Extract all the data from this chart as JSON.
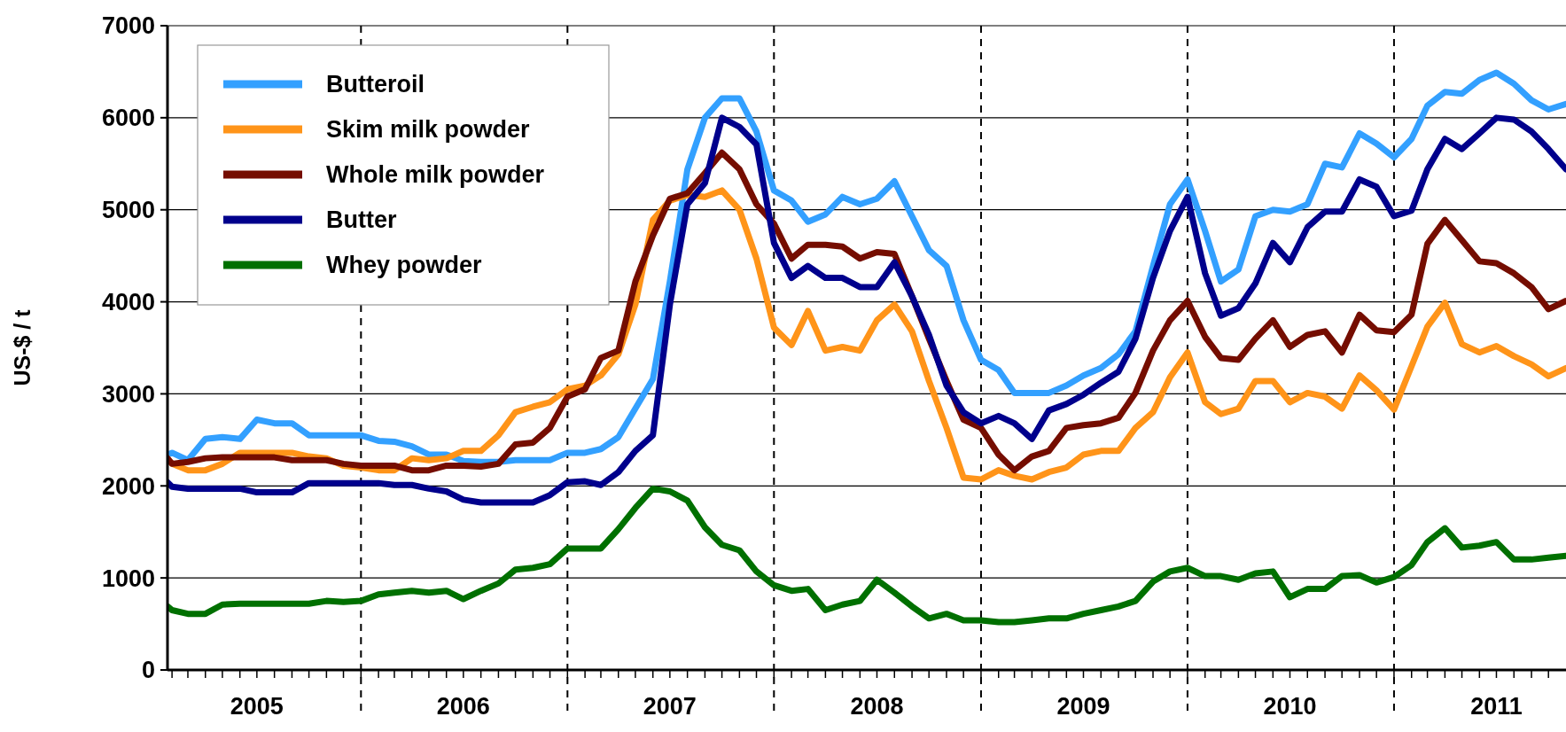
{
  "chart_data": {
    "type": "line",
    "ylabel": "US-$ / t",
    "ylim": [
      0,
      7000
    ],
    "yticks": [
      0,
      1000,
      2000,
      3000,
      4000,
      5000,
      6000,
      7000
    ],
    "grid": "y",
    "legend": "top left",
    "marker": "none",
    "line_style": "solid",
    "xlim": [
      "2005-01-24",
      "2011-11-01"
    ],
    "xticks": [
      {
        "value": "2005-02-01",
        "label": null
      },
      {
        "value": "2005-03-01",
        "label": null
      },
      {
        "value": "2005-04-01",
        "label": null
      },
      {
        "value": "2005-05-01",
        "label": null
      },
      {
        "value": "2005-06-01",
        "label": null
      },
      {
        "value": "2005-07-01",
        "label": "2005"
      },
      {
        "value": "2005-08-01",
        "label": null
      },
      {
        "value": "2005-09-01",
        "label": null
      },
      {
        "value": "2005-10-01",
        "label": null
      },
      {
        "value": "2005-11-01",
        "label": null
      },
      {
        "value": "2005-12-01",
        "label": null
      },
      {
        "value": "2006-01-01",
        "label": null
      },
      {
        "value": "2006-02-01",
        "label": null
      },
      {
        "value": "2006-03-01",
        "label": null
      },
      {
        "value": "2006-04-01",
        "label": null
      },
      {
        "value": "2006-05-01",
        "label": null
      },
      {
        "value": "2006-06-01",
        "label": null
      },
      {
        "value": "2006-07-01",
        "label": "2006"
      },
      {
        "value": "2006-08-01",
        "label": null
      },
      {
        "value": "2006-09-01",
        "label": null
      },
      {
        "value": "2006-10-01",
        "label": null
      },
      {
        "value": "2006-11-01",
        "label": null
      },
      {
        "value": "2006-12-01",
        "label": null
      },
      {
        "value": "2007-01-01",
        "label": null
      },
      {
        "value": "2007-02-01",
        "label": null
      },
      {
        "value": "2007-03-01",
        "label": null
      },
      {
        "value": "2007-04-01",
        "label": null
      },
      {
        "value": "2007-05-01",
        "label": null
      },
      {
        "value": "2007-06-01",
        "label": null
      },
      {
        "value": "2007-07-01",
        "label": "2007"
      },
      {
        "value": "2007-08-01",
        "label": null
      },
      {
        "value": "2007-09-01",
        "label": null
      },
      {
        "value": "2007-10-01",
        "label": null
      },
      {
        "value": "2007-11-01",
        "label": null
      },
      {
        "value": "2007-12-01",
        "label": null
      },
      {
        "value": "2008-01-01",
        "label": null
      },
      {
        "value": "2008-02-01",
        "label": null
      },
      {
        "value": "2008-03-01",
        "label": null
      },
      {
        "value": "2008-04-01",
        "label": null
      },
      {
        "value": "2008-05-01",
        "label": null
      },
      {
        "value": "2008-06-01",
        "label": null
      },
      {
        "value": "2008-07-01",
        "label": "2008"
      },
      {
        "value": "2008-08-01",
        "label": null
      },
      {
        "value": "2008-09-01",
        "label": null
      },
      {
        "value": "2008-10-01",
        "label": null
      },
      {
        "value": "2008-11-01",
        "label": null
      },
      {
        "value": "2008-12-01",
        "label": null
      },
      {
        "value": "2009-01-01",
        "label": null
      },
      {
        "value": "2009-02-01",
        "label": null
      },
      {
        "value": "2009-03-01",
        "label": null
      },
      {
        "value": "2009-04-01",
        "label": null
      },
      {
        "value": "2009-05-01",
        "label": null
      },
      {
        "value": "2009-06-01",
        "label": null
      },
      {
        "value": "2009-07-01",
        "label": "2009"
      },
      {
        "value": "2009-08-01",
        "label": null
      },
      {
        "value": "2009-09-01",
        "label": null
      },
      {
        "value": "2009-10-01",
        "label": null
      },
      {
        "value": "2009-11-01",
        "label": null
      },
      {
        "value": "2009-12-01",
        "label": null
      },
      {
        "value": "2010-01-01",
        "label": null
      },
      {
        "value": "2010-02-01",
        "label": null
      },
      {
        "value": "2010-03-01",
        "label": null
      },
      {
        "value": "2010-04-01",
        "label": null
      },
      {
        "value": "2010-05-01",
        "label": null
      },
      {
        "value": "2010-06-01",
        "label": null
      },
      {
        "value": "2010-07-01",
        "label": "2010"
      },
      {
        "value": "2010-08-01",
        "label": null
      },
      {
        "value": "2010-09-01",
        "label": null
      },
      {
        "value": "2010-10-01",
        "label": null
      },
      {
        "value": "2010-11-01",
        "label": null
      },
      {
        "value": "2010-12-01",
        "label": null
      },
      {
        "value": "2011-01-01",
        "label": null
      },
      {
        "value": "2011-02-01",
        "label": null
      },
      {
        "value": "2011-03-01",
        "label": null
      },
      {
        "value": "2011-04-01",
        "label": null
      },
      {
        "value": "2011-05-01",
        "label": null
      },
      {
        "value": "2011-06-01",
        "label": null
      },
      {
        "value": "2011-07-01",
        "label": "2011"
      },
      {
        "value": "2011-08-01",
        "label": null
      },
      {
        "value": "2011-09-01",
        "label": null
      },
      {
        "value": "2011-10-01",
        "label": null
      }
    ],
    "ref_lines": [
      {
        "axis": "x",
        "value": "2006-01-01",
        "line_style": "dashed",
        "color": "#000000"
      },
      {
        "axis": "x",
        "value": "2007-01-01",
        "line_style": "dashed",
        "color": "#000000"
      },
      {
        "axis": "x",
        "value": "2008-01-01",
        "line_style": "dashed",
        "color": "#000000"
      },
      {
        "axis": "x",
        "value": "2009-01-01",
        "line_style": "dashed",
        "color": "#000000"
      },
      {
        "axis": "x",
        "value": "2010-01-01",
        "line_style": "dashed",
        "color": "#000000"
      },
      {
        "axis": "x",
        "value": "2011-01-01",
        "line_style": "dashed",
        "color": "#000000"
      }
    ],
    "x": [
      "2005-01-24",
      "2005-02",
      "2005-03",
      "2005-04",
      "2005-05",
      "2005-06",
      "2005-07",
      "2005-08",
      "2005-09",
      "2005-10",
      "2005-11",
      "2005-12",
      "2006-01",
      "2006-02",
      "2006-03",
      "2006-04",
      "2006-05",
      "2006-06",
      "2006-07",
      "2006-08",
      "2006-09",
      "2006-10",
      "2006-11",
      "2006-12",
      "2007-01",
      "2007-02",
      "2007-03",
      "2007-04",
      "2007-05",
      "2007-06",
      "2007-07",
      "2007-08",
      "2007-09",
      "2007-10",
      "2007-11",
      "2007-12",
      "2008-01",
      "2008-02",
      "2008-03",
      "2008-04",
      "2008-05",
      "2008-06",
      "2008-07",
      "2008-08",
      "2008-09",
      "2008-10",
      "2008-11",
      "2008-12",
      "2009-01",
      "2009-02",
      "2009-03",
      "2009-04",
      "2009-05",
      "2009-06",
      "2009-07",
      "2009-08",
      "2009-09",
      "2009-10",
      "2009-11",
      "2009-12",
      "2010-01",
      "2010-02",
      "2010-03",
      "2010-04",
      "2010-05",
      "2010-06",
      "2010-07",
      "2010-08",
      "2010-09",
      "2010-10",
      "2010-11",
      "2010-12",
      "2011-01",
      "2011-02",
      "2011-03",
      "2011-04",
      "2011-05",
      "2011-06",
      "2011-07",
      "2011-08",
      "2011-09",
      "2011-10",
      "2011-11"
    ],
    "series": [
      {
        "name": "Butteroil",
        "color": "#33a0ff",
        "values": [
          2340,
          2360,
          2280,
          2510,
          2530,
          2510,
          2720,
          2680,
          2680,
          2550,
          2550,
          2550,
          2550,
          2490,
          2480,
          2430,
          2340,
          2340,
          2270,
          2260,
          2260,
          2280,
          2280,
          2280,
          2360,
          2360,
          2400,
          2530,
          2840,
          3160,
          4220,
          5440,
          6000,
          6210,
          6210,
          5850,
          5210,
          5100,
          4870,
          4950,
          5140,
          5060,
          5120,
          5310,
          4930,
          4560,
          4390,
          3800,
          3370,
          3260,
          3010,
          3010,
          3010,
          3090,
          3200,
          3280,
          3430,
          3680,
          4390,
          5060,
          5330,
          4770,
          4220,
          4350,
          4930,
          5000,
          4980,
          5060,
          5500,
          5460,
          5830,
          5720,
          5570,
          5770,
          6130,
          6280,
          6260,
          6410,
          6490,
          6370,
          6190,
          6090,
          6150
        ]
      },
      {
        "name": "Skim milk powder",
        "color": "#ff9419",
        "values": [
          2300,
          2240,
          2170,
          2170,
          2240,
          2360,
          2360,
          2360,
          2360,
          2320,
          2300,
          2220,
          2200,
          2170,
          2170,
          2300,
          2280,
          2300,
          2380,
          2380,
          2550,
          2800,
          2860,
          2910,
          3050,
          3090,
          3200,
          3430,
          3970,
          4890,
          5100,
          5160,
          5140,
          5210,
          5000,
          4470,
          3720,
          3530,
          3900,
          3470,
          3510,
          3470,
          3800,
          3970,
          3680,
          3140,
          2630,
          2090,
          2070,
          2170,
          2110,
          2070,
          2150,
          2200,
          2340,
          2380,
          2380,
          2630,
          2800,
          3180,
          3450,
          2910,
          2780,
          2840,
          3140,
          3140,
          2910,
          3010,
          2970,
          2840,
          3200,
          3040,
          2830,
          3300,
          3730,
          3990,
          3540,
          3450,
          3520,
          3410,
          3320,
          3190,
          3280
        ]
      },
      {
        "name": "Whole milk powder",
        "color": "#750d00",
        "values": [
          2300,
          2240,
          2260,
          2300,
          2310,
          2310,
          2310,
          2310,
          2280,
          2280,
          2280,
          2240,
          2220,
          2220,
          2220,
          2170,
          2170,
          2220,
          2220,
          2210,
          2240,
          2450,
          2470,
          2630,
          2970,
          3050,
          3390,
          3470,
          4220,
          4720,
          5120,
          5180,
          5400,
          5620,
          5440,
          5060,
          4850,
          4470,
          4620,
          4620,
          4600,
          4470,
          4540,
          4520,
          4060,
          3600,
          3140,
          2720,
          2630,
          2340,
          2170,
          2320,
          2380,
          2630,
          2660,
          2680,
          2740,
          3010,
          3470,
          3800,
          4010,
          3620,
          3390,
          3370,
          3600,
          3800,
          3510,
          3640,
          3680,
          3450,
          3860,
          3690,
          3670,
          3860,
          4630,
          4890,
          4670,
          4440,
          4420,
          4310,
          4160,
          3920,
          4010
        ]
      },
      {
        "name": "Butter",
        "color": "#00008c",
        "values": [
          2040,
          1990,
          1970,
          1970,
          1970,
          1970,
          1930,
          1930,
          1930,
          2030,
          2030,
          2030,
          2030,
          2030,
          2010,
          2010,
          1970,
          1940,
          1850,
          1820,
          1820,
          1820,
          1820,
          1900,
          2040,
          2050,
          2010,
          2150,
          2380,
          2550,
          3970,
          5060,
          5290,
          6000,
          5900,
          5710,
          4640,
          4260,
          4390,
          4260,
          4260,
          4160,
          4160,
          4430,
          4060,
          3640,
          3090,
          2800,
          2680,
          2760,
          2680,
          2510,
          2820,
          2890,
          2990,
          3120,
          3240,
          3600,
          4260,
          4770,
          5140,
          4310,
          3850,
          3930,
          4200,
          4640,
          4430,
          4810,
          4980,
          4980,
          5330,
          5250,
          4930,
          4990,
          5440,
          5770,
          5660,
          5830,
          6000,
          5980,
          5850,
          5660,
          5440
        ]
      },
      {
        "name": "Whey powder",
        "color": "#007000",
        "values": [
          690,
          650,
          610,
          610,
          710,
          720,
          720,
          720,
          720,
          720,
          750,
          740,
          750,
          820,
          840,
          860,
          840,
          860,
          770,
          860,
          940,
          1090,
          1110,
          1150,
          1320,
          1320,
          1320,
          1530,
          1760,
          1970,
          1940,
          1840,
          1550,
          1360,
          1300,
          1070,
          920,
          860,
          880,
          650,
          710,
          750,
          980,
          840,
          690,
          560,
          610,
          540,
          540,
          520,
          520,
          540,
          560,
          560,
          610,
          650,
          690,
          750,
          960,
          1070,
          1110,
          1020,
          1020,
          980,
          1050,
          1070,
          790,
          880,
          880,
          1020,
          1030,
          950,
          1010,
          1140,
          1390,
          1540,
          1330,
          1350,
          1390,
          1200,
          1200,
          1220,
          1240
        ]
      }
    ]
  }
}
